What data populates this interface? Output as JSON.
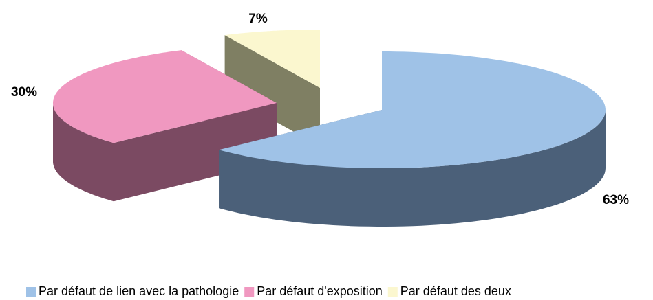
{
  "chart_data": {
    "type": "pie3d",
    "categories": [
      "Par défaut de lien avec la pathologie",
      "Par défaut d'exposition",
      "Par défaut des deux"
    ],
    "values": [
      63,
      30,
      7
    ],
    "value_labels": [
      "63%",
      "30%",
      "7%"
    ],
    "colors": [
      "#9fc2e7",
      "#f098c0",
      "#fbf7cf"
    ],
    "side_colors": [
      "#4b6079",
      "#7b4a62",
      "#7f7f63"
    ],
    "legend": "bottom"
  }
}
